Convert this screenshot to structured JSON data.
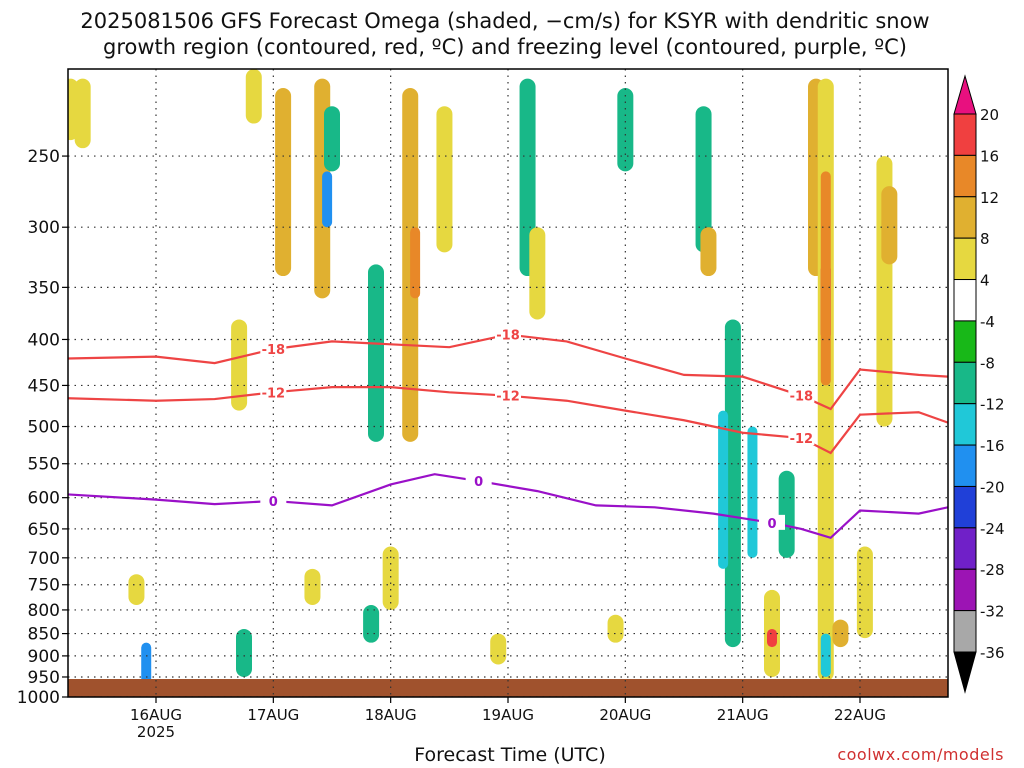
{
  "title": "2025081506 GFS Forecast Omega (shaded, −cm/s) for KSYR with dendritic snow\ngrowth region (contoured, red, ºC) and freezing level (contoured, purple, ºC)",
  "credit": "coolwx.com/models",
  "chart_data": {
    "type": "heatmap",
    "xlabel": "Forecast Time (UTC)",
    "ylabel": "",
    "x_range": [
      "2025-08-15T06:00Z",
      "2025-08-22T18:00Z"
    ],
    "x_ticks": [
      {
        "label": "16AUG",
        "sublabel": "2025",
        "date": "2025-08-16T00:00Z"
      },
      {
        "label": "17AUG",
        "sublabel": "",
        "date": "2025-08-17T00:00Z"
      },
      {
        "label": "18AUG",
        "sublabel": "",
        "date": "2025-08-18T00:00Z"
      },
      {
        "label": "19AUG",
        "sublabel": "",
        "date": "2025-08-19T00:00Z"
      },
      {
        "label": "20AUG",
        "sublabel": "",
        "date": "2025-08-20T00:00Z"
      },
      {
        "label": "21AUG",
        "sublabel": "",
        "date": "2025-08-21T00:00Z"
      },
      {
        "label": "22AUG",
        "sublabel": "",
        "date": "2025-08-22T00:00Z"
      }
    ],
    "y_scale": "log-pressure",
    "y_range": [
      1000,
      200
    ],
    "y_ticks": [
      250,
      300,
      350,
      400,
      450,
      500,
      550,
      600,
      650,
      700,
      750,
      800,
      850,
      900,
      950,
      1000
    ],
    "grid": true,
    "colorbar": {
      "levels": [
        20,
        16,
        12,
        8,
        4,
        -4,
        -8,
        -12,
        -16,
        -20,
        -24,
        -28,
        -32,
        -36
      ],
      "colors": [
        "#e8107f",
        "#f04040",
        "#e88828",
        "#e0b030",
        "#e6d840",
        "#ffffff",
        "#18b818",
        "#18b888",
        "#20c8d8",
        "#2090f0",
        "#2040d8",
        "#7020c8",
        "#9c14b4",
        "#a8a8a8",
        "#000000"
      ]
    },
    "contours": [
      {
        "label": "-18",
        "color": "#ee4444",
        "points": [
          [
            "2025-08-15T06:00Z",
            420
          ],
          [
            "2025-08-16T00:00Z",
            418
          ],
          [
            "2025-08-16T12:00Z",
            425
          ],
          [
            "2025-08-17T00:00Z",
            410
          ],
          [
            "2025-08-17T12:00Z",
            402
          ],
          [
            "2025-08-18T00:00Z",
            405
          ],
          [
            "2025-08-18T12:00Z",
            408
          ],
          [
            "2025-08-19T00:00Z",
            395
          ],
          [
            "2025-08-19T12:00Z",
            402
          ],
          [
            "2025-08-20T00:00Z",
            420
          ],
          [
            "2025-08-20T12:00Z",
            438
          ],
          [
            "2025-08-21T00:00Z",
            440
          ],
          [
            "2025-08-21T12:00Z",
            462
          ],
          [
            "2025-08-21T18:00Z",
            478
          ],
          [
            "2025-08-22T00:00Z",
            432
          ],
          [
            "2025-08-22T12:00Z",
            438
          ],
          [
            "2025-08-22T18:00Z",
            440
          ]
        ]
      },
      {
        "label": "-12",
        "color": "#ee4444",
        "points": [
          [
            "2025-08-15T06:00Z",
            465
          ],
          [
            "2025-08-16T00:00Z",
            468
          ],
          [
            "2025-08-16T12:00Z",
            466
          ],
          [
            "2025-08-17T00:00Z",
            458
          ],
          [
            "2025-08-17T12:00Z",
            452
          ],
          [
            "2025-08-18T00:00Z",
            452
          ],
          [
            "2025-08-18T12:00Z",
            458
          ],
          [
            "2025-08-19T00:00Z",
            462
          ],
          [
            "2025-08-19T12:00Z",
            468
          ],
          [
            "2025-08-20T00:00Z",
            480
          ],
          [
            "2025-08-20T12:00Z",
            492
          ],
          [
            "2025-08-21T00:00Z",
            508
          ],
          [
            "2025-08-21T12:00Z",
            515
          ],
          [
            "2025-08-21T18:00Z",
            535
          ],
          [
            "2025-08-22T00:00Z",
            485
          ],
          [
            "2025-08-22T12:00Z",
            482
          ],
          [
            "2025-08-22T18:00Z",
            495
          ]
        ]
      },
      {
        "label": "0",
        "color": "#9a10c8",
        "points": [
          [
            "2025-08-15T06:00Z",
            595
          ],
          [
            "2025-08-16T00:00Z",
            603
          ],
          [
            "2025-08-16T12:00Z",
            610
          ],
          [
            "2025-08-17T00:00Z",
            605
          ],
          [
            "2025-08-17T12:00Z",
            612
          ],
          [
            "2025-08-18T00:00Z",
            580
          ],
          [
            "2025-08-18T09:00Z",
            565
          ],
          [
            "2025-08-18T18:00Z",
            575
          ],
          [
            "2025-08-19T06:00Z",
            590
          ],
          [
            "2025-08-19T18:00Z",
            612
          ],
          [
            "2025-08-20T06:00Z",
            615
          ],
          [
            "2025-08-20T18:00Z",
            625
          ],
          [
            "2025-08-21T06:00Z",
            640
          ],
          [
            "2025-08-21T12:00Z",
            650
          ],
          [
            "2025-08-21T18:00Z",
            665
          ],
          [
            "2025-08-22T00:00Z",
            620
          ],
          [
            "2025-08-22T12:00Z",
            625
          ],
          [
            "2025-08-22T18:00Z",
            615
          ]
        ]
      }
    ],
    "terrain_fill": {
      "color": "#a0522d"
    },
    "omega_blobs": [
      {
        "t": "2025-08-15T06:30Z",
        "p0": 205,
        "p1": 240,
        "v": 5
      },
      {
        "t": "2025-08-15T09:00Z",
        "p0": 205,
        "p1": 245,
        "v": 5
      },
      {
        "t": "2025-08-15T22:00Z",
        "p0": 870,
        "p1": 965,
        "v": -16
      },
      {
        "t": "2025-08-15T20:00Z",
        "p0": 730,
        "p1": 790,
        "v": 5
      },
      {
        "t": "2025-08-16T17:00Z",
        "p0": 380,
        "p1": 480,
        "v": 5
      },
      {
        "t": "2025-08-16T20:00Z",
        "p0": 200,
        "p1": 230,
        "v": 5
      },
      {
        "t": "2025-08-17T02:00Z",
        "p0": 210,
        "p1": 340,
        "v": 8
      },
      {
        "t": "2025-08-17T10:00Z",
        "p0": 205,
        "p1": 360,
        "v": 10
      },
      {
        "t": "2025-08-17T11:00Z",
        "p0": 260,
        "p1": 300,
        "v": -18
      },
      {
        "t": "2025-08-17T12:00Z",
        "p0": 220,
        "p1": 260,
        "v": -8
      },
      {
        "t": "2025-08-16T18:00Z",
        "p0": 840,
        "p1": 950,
        "v": -8
      },
      {
        "t": "2025-08-17T08:00Z",
        "p0": 720,
        "p1": 790,
        "v": 5
      },
      {
        "t": "2025-08-17T21:00Z",
        "p0": 330,
        "p1": 520,
        "v": -9
      },
      {
        "t": "2025-08-18T04:00Z",
        "p0": 210,
        "p1": 520,
        "v": 10
      },
      {
        "t": "2025-08-18T05:00Z",
        "p0": 300,
        "p1": 360,
        "v": 14
      },
      {
        "t": "2025-08-18T11:00Z",
        "p0": 220,
        "p1": 320,
        "v": 6
      },
      {
        "t": "2025-08-17T20:00Z",
        "p0": 790,
        "p1": 870,
        "v": -8
      },
      {
        "t": "2025-08-18T00:00Z",
        "p0": 680,
        "p1": 800,
        "v": 5
      },
      {
        "t": "2025-08-18T22:00Z",
        "p0": 850,
        "p1": 920,
        "v": 5
      },
      {
        "t": "2025-08-19T04:00Z",
        "p0": 205,
        "p1": 340,
        "v": -8
      },
      {
        "t": "2025-08-19T06:00Z",
        "p0": 300,
        "p1": 380,
        "v": 5
      },
      {
        "t": "2025-08-20T00:00Z",
        "p0": 210,
        "p1": 260,
        "v": -8
      },
      {
        "t": "2025-08-19T22:00Z",
        "p0": 810,
        "p1": 870,
        "v": 5
      },
      {
        "t": "2025-08-20T16:00Z",
        "p0": 220,
        "p1": 320,
        "v": -8
      },
      {
        "t": "2025-08-20T17:00Z",
        "p0": 300,
        "p1": 340,
        "v": 10
      },
      {
        "t": "2025-08-20T22:00Z",
        "p0": 380,
        "p1": 880,
        "v": -8
      },
      {
        "t": "2025-08-20T20:00Z",
        "p0": 480,
        "p1": 720,
        "v": -14
      },
      {
        "t": "2025-08-21T02:00Z",
        "p0": 500,
        "p1": 700,
        "v": -12
      },
      {
        "t": "2025-08-21T06:00Z",
        "p0": 760,
        "p1": 950,
        "v": 6
      },
      {
        "t": "2025-08-21T06:00Z",
        "p0": 840,
        "p1": 880,
        "v": 16
      },
      {
        "t": "2025-08-21T09:00Z",
        "p0": 560,
        "p1": 700,
        "v": -9
      },
      {
        "t": "2025-08-21T15:00Z",
        "p0": 205,
        "p1": 340,
        "v": 8
      },
      {
        "t": "2025-08-21T17:00Z",
        "p0": 205,
        "p1": 960,
        "v": 5
      },
      {
        "t": "2025-08-21T17:00Z",
        "p0": 330,
        "p1": 400,
        "v": 20
      },
      {
        "t": "2025-08-21T17:00Z",
        "p0": 260,
        "p1": 450,
        "v": 12
      },
      {
        "t": "2025-08-21T17:00Z",
        "p0": 850,
        "p1": 950,
        "v": -14
      },
      {
        "t": "2025-08-21T20:00Z",
        "p0": 820,
        "p1": 880,
        "v": 10
      },
      {
        "t": "2025-08-22T05:00Z",
        "p0": 250,
        "p1": 500,
        "v": 6
      },
      {
        "t": "2025-08-22T06:00Z",
        "p0": 270,
        "p1": 330,
        "v": 10
      },
      {
        "t": "2025-08-22T01:00Z",
        "p0": 680,
        "p1": 860,
        "v": 5
      }
    ]
  }
}
